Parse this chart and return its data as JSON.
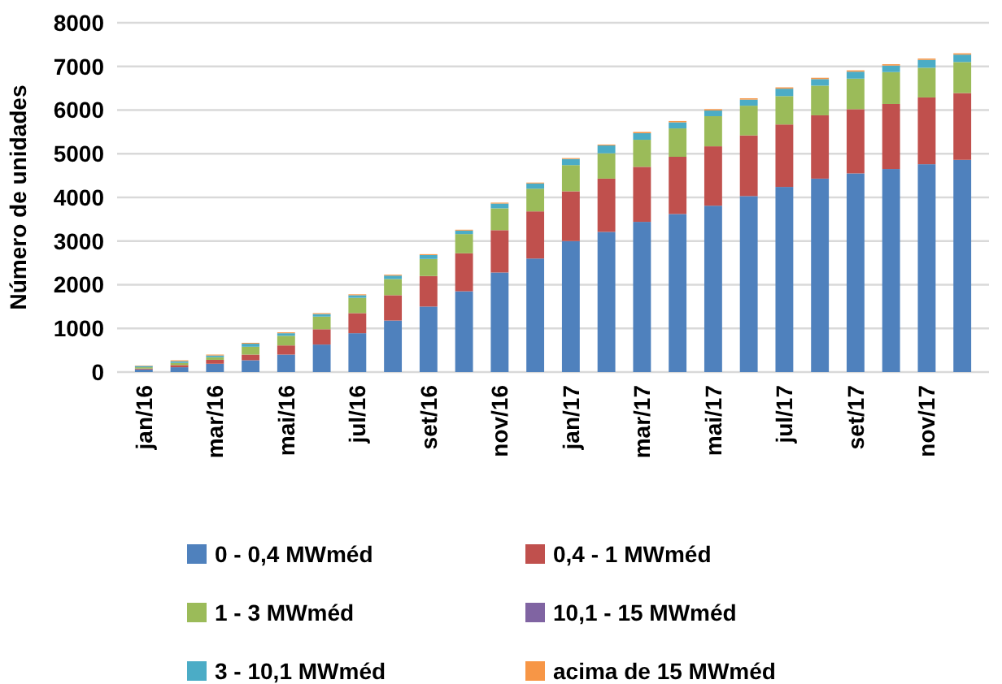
{
  "chart_data": {
    "type": "bar",
    "stacked": true,
    "ylabel": "Número de unidades",
    "categories": [
      "jan/16",
      null,
      "mar/16",
      null,
      "mai/16",
      null,
      "jul/16",
      null,
      "set/16",
      null,
      "nov/16",
      null,
      "jan/17",
      null,
      "mar/17",
      null,
      "mai/17",
      null,
      "jul/17",
      null,
      "set/17",
      null,
      "nov/17",
      null
    ],
    "series": [
      {
        "name": "0 - 0,4 MWméd",
        "color": "#4f81bd",
        "values": [
          60,
          110,
          190,
          270,
          400,
          630,
          890,
          1180,
          1500,
          1850,
          2280,
          2600,
          3000,
          3210,
          3440,
          3620,
          3810,
          4030,
          4240,
          4430,
          4550,
          4650,
          4760,
          4860
        ]
      },
      {
        "name": "0,4 - 1 MWméd",
        "color": "#c0504d",
        "values": [
          20,
          50,
          90,
          130,
          210,
          350,
          460,
          580,
          700,
          870,
          970,
          1080,
          1140,
          1220,
          1260,
          1310,
          1360,
          1390,
          1430,
          1450,
          1470,
          1490,
          1530,
          1530
        ]
      },
      {
        "name": "1 - 3 MWméd",
        "color": "#9bbb59",
        "values": [
          30,
          50,
          60,
          180,
          220,
          290,
          350,
          370,
          390,
          440,
          500,
          520,
          600,
          580,
          620,
          650,
          690,
          680,
          650,
          680,
          700,
          730,
          680,
          710
        ]
      },
      {
        "name": "10,1 - 15 MWméd",
        "color": "#8064a2",
        "values": [
          null,
          null,
          null,
          null,
          null,
          null,
          null,
          null,
          null,
          null,
          null,
          null,
          null,
          null,
          null,
          null,
          null,
          null,
          null,
          null,
          null,
          null,
          null,
          null
        ]
      },
      {
        "name": "3 - 10,1 MWméd",
        "color": "#4bacc6",
        "values": [
          30,
          40,
          40,
          70,
          60,
          60,
          60,
          80,
          90,
          80,
          110,
          120,
          140,
          180,
          150,
          140,
          130,
          140,
          170,
          150,
          160,
          150,
          180,
          170
        ]
      },
      {
        "name": "acima de 15 MWméd",
        "color": "#f79646",
        "values": [
          10,
          20,
          20,
          20,
          20,
          20,
          20,
          20,
          20,
          20,
          20,
          20,
          20,
          20,
          30,
          30,
          30,
          30,
          30,
          30,
          30,
          30,
          30,
          30
        ]
      }
    ],
    "ylim": [
      0,
      8000
    ],
    "yticks": [
      0,
      1000,
      2000,
      3000,
      4000,
      5000,
      6000,
      7000,
      8000
    ],
    "grid": "y",
    "legend": "bottom"
  }
}
